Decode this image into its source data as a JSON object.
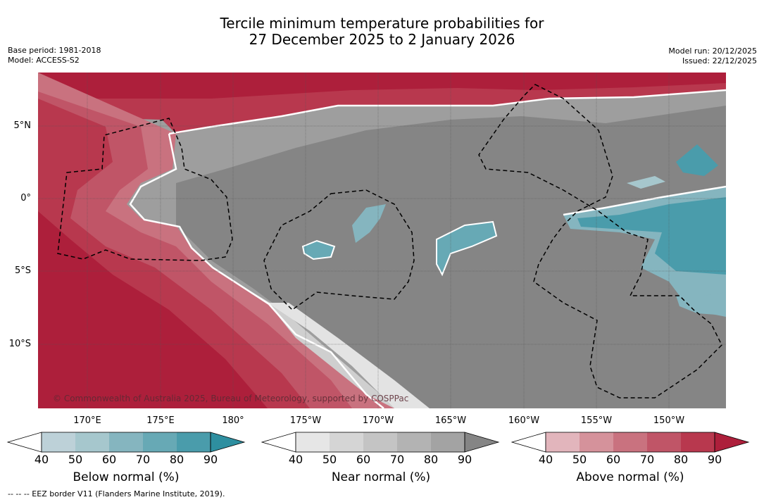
{
  "title": {
    "line1": "Tercile minimum temperature probabilities for",
    "line2": "27 December 2025 to 2 January 2026"
  },
  "meta": {
    "base_period": "Base period: 1981-2018",
    "model": "Model: ACCESS-S2",
    "model_run": "Model run: 20/12/2025",
    "issued": "Issued: 22/12/2025"
  },
  "map": {
    "lon_labels": [
      "170°E",
      "175°E",
      "180°",
      "175°W",
      "170°W",
      "165°W",
      "160°W",
      "155°W",
      "150°W"
    ],
    "lat_labels": [
      "5°N",
      "0°",
      "5°S",
      "10°S"
    ],
    "copyright": "© Commonwealth of Australia 2025, Bureau of Meteorology, supported by COSPPac"
  },
  "colorbars": [
    {
      "name": "below-normal",
      "title": "Below normal (%)",
      "ticks": [
        "40",
        "50",
        "60",
        "70",
        "80",
        "90"
      ],
      "colors": [
        "#bdd1d8",
        "#a6c7cd",
        "#85b5bf",
        "#67a9b5",
        "#4a9cab",
        "#2e8fa0"
      ]
    },
    {
      "name": "near-normal",
      "title": "Near normal (%)",
      "ticks": [
        "40",
        "50",
        "60",
        "70",
        "80",
        "90"
      ],
      "colors": [
        "#e6e6e6",
        "#d5d5d5",
        "#c4c4c4",
        "#b3b3b3",
        "#a3a3a3",
        "#858585"
      ]
    },
    {
      "name": "above-normal",
      "title": "Above normal (%)",
      "ticks": [
        "40",
        "50",
        "60",
        "70",
        "80",
        "90"
      ],
      "colors": [
        "#e2b5bc",
        "#d5929b",
        "#c9727f",
        "#c05567",
        "#b8384e",
        "#ad1f3b"
      ]
    }
  ],
  "footnote": "--  --  -- EEZ border V11 (Flanders Marine Institute, 2019)."
}
